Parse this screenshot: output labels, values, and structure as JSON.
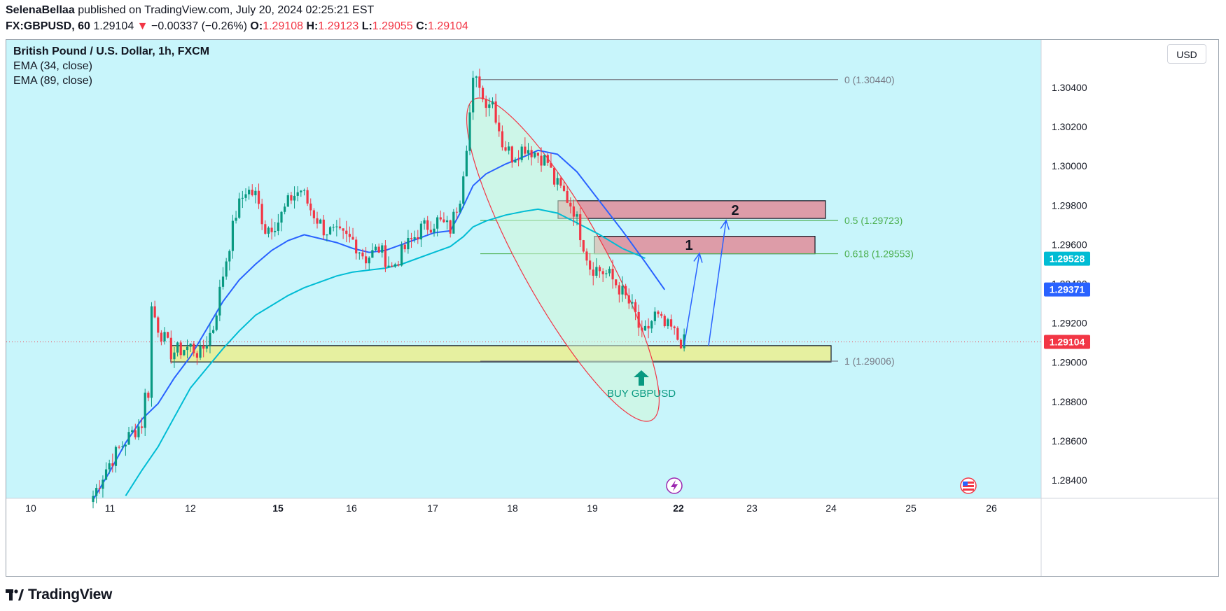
{
  "header": {
    "author": "SelenaBellaa",
    "published": "published on TradingView.com, July 20, 2024 02:25:21 EST",
    "symbol": "FX:GBPUSD, 60",
    "last": "1.29104",
    "change_arrow": "▼",
    "change": "−0.00337 (−0.26%)",
    "o_label": "O:",
    "o_value": "1.29108",
    "h_label": "H:",
    "h_value": "1.29123",
    "l_label": "L:",
    "l_value": "1.29055",
    "c_label": "C:",
    "c_value": "1.29104"
  },
  "legend": {
    "title": "British Pound / U.S. Dollar, 1h, FXCM",
    "ema1": "EMA (34, close)",
    "ema2": "EMA (89, close)"
  },
  "currency_button": "USD",
  "brand": "TradingView",
  "colors": {
    "background": "#c8f5fb",
    "up": "#089981",
    "down": "#f23645",
    "ema34": "#2962ff",
    "ema89": "#00bcd4",
    "fib_level": "#4caf50",
    "fib_extreme": "#787b86",
    "support_zone": "#e6f0a0",
    "target_zone": "#dd9ca8",
    "ellipse": "#f23645",
    "ellipse_fill": "#d1f5d8",
    "arrow": "#2962ff"
  },
  "chart_data": {
    "type": "candlestick",
    "y_range": [
      1.2832,
      1.3065
    ],
    "y_ticks": [
      1.284,
      1.286,
      1.288,
      1.29,
      1.292,
      1.294,
      1.296,
      1.298,
      1.3,
      1.302,
      1.304
    ],
    "y_tick_labels": [
      "1.28400",
      "1.28600",
      "1.28800",
      "1.29000",
      "1.29200",
      "1.29400",
      "1.29600",
      "1.29800",
      "1.30000",
      "1.30200",
      "1.30400"
    ],
    "x_ticks": [
      {
        "label": "10",
        "bold": false
      },
      {
        "label": "11",
        "bold": false
      },
      {
        "label": "12",
        "bold": false
      },
      {
        "label": "15",
        "bold": true
      },
      {
        "label": "16",
        "bold": false
      },
      {
        "label": "17",
        "bold": false
      },
      {
        "label": "18",
        "bold": false
      },
      {
        "label": "19",
        "bold": false
      },
      {
        "label": "22",
        "bold": true
      },
      {
        "label": "23",
        "bold": false
      },
      {
        "label": "24",
        "bold": false
      },
      {
        "label": "25",
        "bold": false
      },
      {
        "label": "26",
        "bold": false
      }
    ],
    "price_tags": [
      {
        "label": "1.29528",
        "value": 1.29528,
        "color": "#00bcd4"
      },
      {
        "label": "1.29371",
        "value": 1.29371,
        "color": "#2962ff"
      },
      {
        "label": "1.29104",
        "value": 1.29104,
        "color": "#f23645"
      }
    ],
    "current_price": 1.29104,
    "fib_levels": [
      {
        "label": "0 (1.30440)",
        "value": 1.3044,
        "color": "#787b86"
      },
      {
        "label": "0.5 (1.29723)",
        "value": 1.29723,
        "color": "#4caf50"
      },
      {
        "label": "0.618 (1.29553)",
        "value": 1.29553,
        "color": "#4caf50"
      },
      {
        "label": "1 (1.29006)",
        "value": 1.29006,
        "color": "#787b86"
      }
    ],
    "zones": [
      {
        "label": "",
        "kind": "support",
        "top": 1.29085,
        "bottom": 1.29002
      },
      {
        "label": "1",
        "kind": "target",
        "top": 1.29642,
        "bottom": 1.29553
      },
      {
        "label": "2",
        "kind": "target",
        "top": 1.29823,
        "bottom": 1.29733
      }
    ],
    "annotation": "BUY GBPUSD",
    "price_waypoints": [
      {
        "t": 0,
        "p": 1.2832
      },
      {
        "t": 4,
        "p": 1.2846
      },
      {
        "t": 8,
        "p": 1.2856
      },
      {
        "t": 12,
        "p": 1.2864
      },
      {
        "t": 15,
        "p": 1.2869
      },
      {
        "t": 16,
        "p": 1.2883
      },
      {
        "t": 17,
        "p": 1.2885
      },
      {
        "t": 18,
        "p": 1.2928
      },
      {
        "t": 20,
        "p": 1.2918
      },
      {
        "t": 24,
        "p": 1.2905
      },
      {
        "t": 30,
        "p": 1.2908
      },
      {
        "t": 33,
        "p": 1.2904
      },
      {
        "t": 37,
        "p": 1.2918
      },
      {
        "t": 40,
        "p": 1.2945
      },
      {
        "t": 44,
        "p": 1.2976
      },
      {
        "t": 47,
        "p": 1.2988
      },
      {
        "t": 50,
        "p": 1.2985
      },
      {
        "t": 53,
        "p": 1.2968
      },
      {
        "t": 57,
        "p": 1.2972
      },
      {
        "t": 61,
        "p": 1.2984
      },
      {
        "t": 64,
        "p": 1.2988
      },
      {
        "t": 67,
        "p": 1.2978
      },
      {
        "t": 71,
        "p": 1.2968
      },
      {
        "t": 75,
        "p": 1.2965
      },
      {
        "t": 80,
        "p": 1.2962
      },
      {
        "t": 84,
        "p": 1.2953
      },
      {
        "t": 88,
        "p": 1.2958
      },
      {
        "t": 92,
        "p": 1.2948
      },
      {
        "t": 96,
        "p": 1.2958
      },
      {
        "t": 101,
        "p": 1.2968
      },
      {
        "t": 106,
        "p": 1.2972
      },
      {
        "t": 110,
        "p": 1.2968
      },
      {
        "t": 113,
        "p": 1.2985
      },
      {
        "t": 115,
        "p": 1.3012
      },
      {
        "t": 117,
        "p": 1.3042
      },
      {
        "t": 119,
        "p": 1.3043
      },
      {
        "t": 120,
        "p": 1.3034
      },
      {
        "t": 123,
        "p": 1.3033
      },
      {
        "t": 126,
        "p": 1.3012
      },
      {
        "t": 129,
        "p": 1.3005
      },
      {
        "t": 133,
        "p": 1.301
      },
      {
        "t": 137,
        "p": 1.3006
      },
      {
        "t": 140,
        "p": 1.3002
      },
      {
        "t": 142,
        "p": 1.2992
      },
      {
        "t": 145,
        "p": 1.2986
      },
      {
        "t": 148,
        "p": 1.2978
      },
      {
        "t": 150,
        "p": 1.2966
      },
      {
        "t": 153,
        "p": 1.2949
      },
      {
        "t": 156,
        "p": 1.2947
      },
      {
        "t": 159,
        "p": 1.2944
      },
      {
        "t": 162,
        "p": 1.2938
      },
      {
        "t": 165,
        "p": 1.293
      },
      {
        "t": 167,
        "p": 1.2924
      },
      {
        "t": 169,
        "p": 1.2912
      },
      {
        "t": 171,
        "p": 1.2918
      },
      {
        "t": 173,
        "p": 1.2924
      },
      {
        "t": 176,
        "p": 1.2918
      },
      {
        "t": 178,
        "p": 1.2917
      },
      {
        "t": 180,
        "p": 1.2912
      },
      {
        "t": 182,
        "p": 1.291
      }
    ],
    "ema34_points": [
      [
        1.283,
        0
      ],
      [
        1.2844,
        5
      ],
      [
        1.2859,
        10
      ],
      [
        1.2871,
        15
      ],
      [
        1.2879,
        20
      ],
      [
        1.2892,
        25
      ],
      [
        1.2903,
        30
      ],
      [
        1.2917,
        35
      ],
      [
        1.2931,
        40
      ],
      [
        1.2942,
        45
      ],
      [
        1.295,
        50
      ],
      [
        1.2957,
        55
      ],
      [
        1.2962,
        60
      ],
      [
        1.2965,
        65
      ],
      [
        1.2963,
        70
      ],
      [
        1.2961,
        75
      ],
      [
        1.2958,
        80
      ],
      [
        1.2956,
        85
      ],
      [
        1.2957,
        90
      ],
      [
        1.296,
        95
      ],
      [
        1.2963,
        100
      ],
      [
        1.2966,
        105
      ],
      [
        1.2967,
        110
      ],
      [
        1.2976,
        113
      ],
      [
        1.299,
        117
      ],
      [
        1.2996,
        121
      ],
      [
        1.3001,
        127
      ],
      [
        1.3005,
        133
      ],
      [
        1.3008,
        137
      ],
      [
        1.3006,
        143
      ],
      [
        1.2997,
        149
      ],
      [
        1.2982,
        156
      ],
      [
        1.2967,
        163
      ],
      [
        1.2951,
        170
      ],
      [
        1.2937,
        176
      ]
    ],
    "ema89_points": [
      [
        1.2832,
        10
      ],
      [
        1.2845,
        15
      ],
      [
        1.2857,
        20
      ],
      [
        1.2872,
        25
      ],
      [
        1.2887,
        30
      ],
      [
        1.2897,
        35
      ],
      [
        1.2907,
        40
      ],
      [
        1.2916,
        45
      ],
      [
        1.2924,
        50
      ],
      [
        1.2929,
        55
      ],
      [
        1.2934,
        60
      ],
      [
        1.2938,
        65
      ],
      [
        1.2941,
        70
      ],
      [
        1.2944,
        75
      ],
      [
        1.2946,
        80
      ],
      [
        1.2947,
        85
      ],
      [
        1.2948,
        90
      ],
      [
        1.295,
        95
      ],
      [
        1.2953,
        100
      ],
      [
        1.2956,
        105
      ],
      [
        1.2959,
        110
      ],
      [
        1.2964,
        114
      ],
      [
        1.2969,
        117
      ],
      [
        1.2972,
        121
      ],
      [
        1.2975,
        127
      ],
      [
        1.2977,
        133
      ],
      [
        1.2978,
        137
      ],
      [
        1.2976,
        143
      ],
      [
        1.2971,
        149
      ],
      [
        1.2965,
        156
      ],
      [
        1.2958,
        163
      ],
      [
        1.2953,
        170
      ]
    ]
  }
}
